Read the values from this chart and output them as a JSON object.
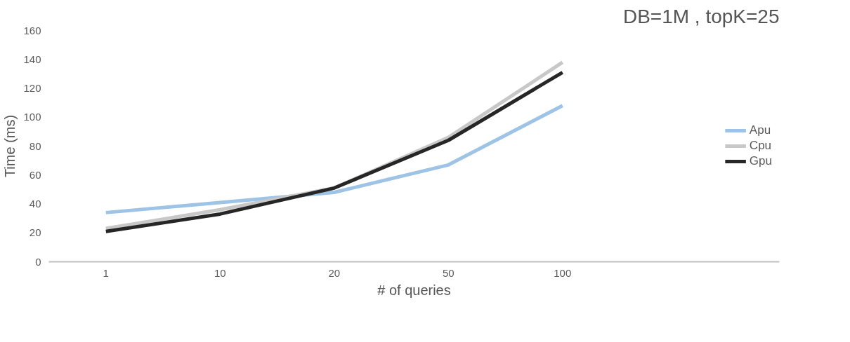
{
  "chart_data": {
    "type": "line",
    "title": "DB=1M , topK=25",
    "xlabel": "# of queries",
    "ylabel": "Time (ms)",
    "categories": [
      "1",
      "10",
      "20",
      "50",
      "100"
    ],
    "series": [
      {
        "name": "Apu",
        "color": "#9dc3e6",
        "values": [
          34,
          41,
          48,
          67,
          108
        ]
      },
      {
        "name": "Cpu",
        "color": "#c8c8c8",
        "values": [
          23,
          36,
          51,
          86,
          138
        ]
      },
      {
        "name": "Gpu",
        "color": "#262626",
        "values": [
          21,
          33,
          51,
          84,
          131
        ]
      }
    ],
    "ylim": [
      0,
      160
    ],
    "yticks": [
      0,
      20,
      40,
      60,
      80,
      100,
      120,
      140,
      160
    ],
    "grid": false,
    "legend": "right",
    "marker": "none",
    "line_style": "solid"
  }
}
